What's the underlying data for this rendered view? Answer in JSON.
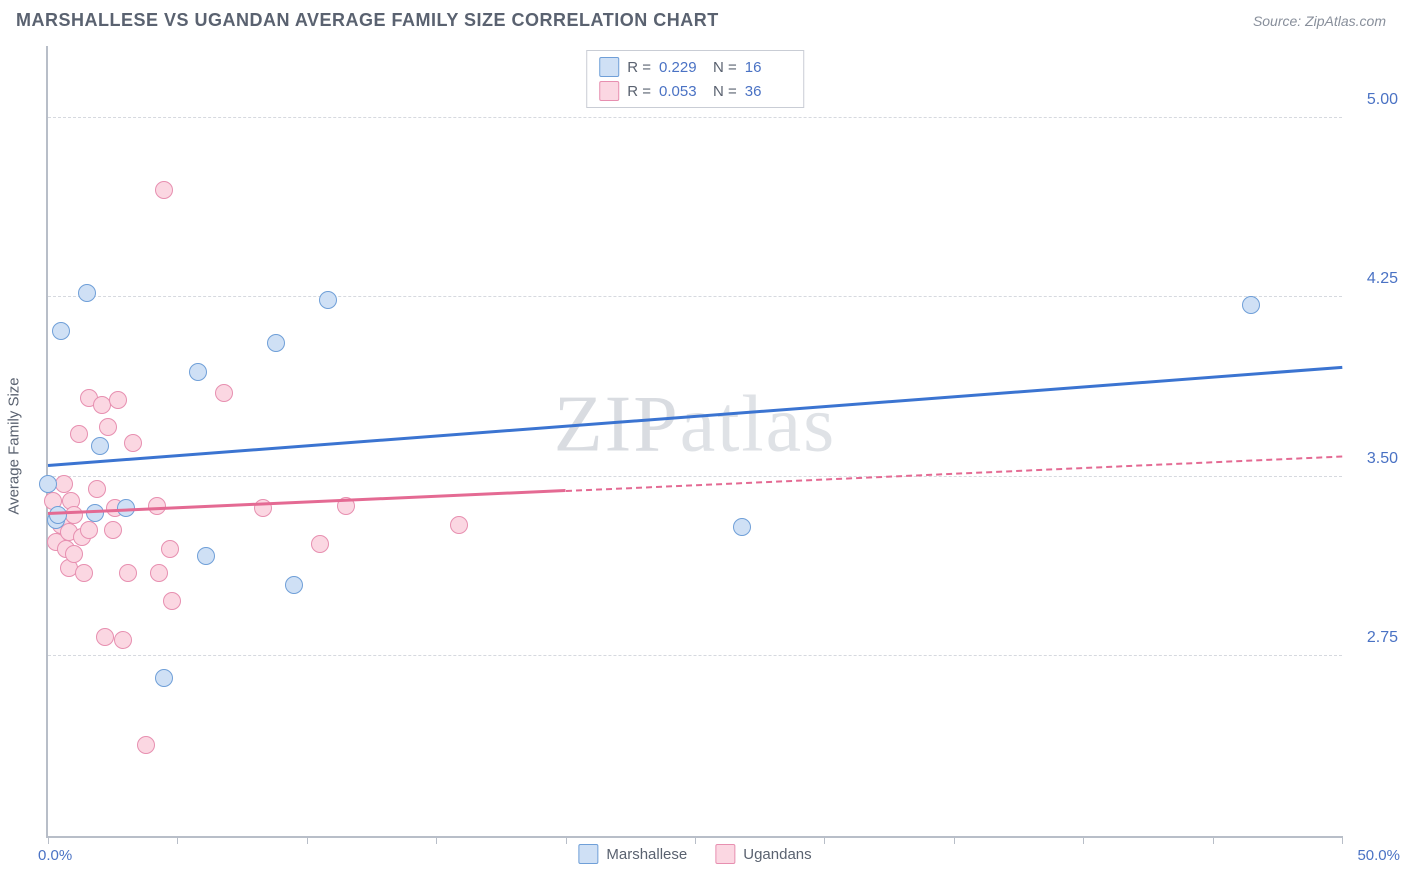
{
  "header": {
    "title": "MARSHALLESE VS UGANDAN AVERAGE FAMILY SIZE CORRELATION CHART",
    "source_prefix": "Source: ",
    "source": "ZipAtlas.com"
  },
  "watermark": {
    "a": "ZIP",
    "b": "atlas"
  },
  "chart": {
    "type": "scatter",
    "ylabel": "Average Family Size",
    "xlim": [
      0,
      50
    ],
    "ylim": [
      2.0,
      5.3
    ],
    "xlim_labels": [
      "0.0%",
      "50.0%"
    ],
    "ytick_vals": [
      2.75,
      3.5,
      4.25,
      5.0
    ],
    "ytick_labels": [
      "2.75",
      "3.50",
      "4.25",
      "5.00"
    ],
    "xtick_vals": [
      0,
      5,
      10,
      15,
      20,
      25,
      30,
      35,
      40,
      45,
      50
    ],
    "background_color": "#ffffff",
    "grid_color": "#d6d9df",
    "axis_color": "#b8bec8",
    "point_radius": 9,
    "series": [
      {
        "name": "Marshallese",
        "fill": "#cfe0f5",
        "stroke": "#6f9fd8",
        "R": "0.229",
        "N": "16",
        "trend": {
          "y_at_x0": 3.54,
          "y_at_x50": 3.95,
          "solid_x_end": 50,
          "color": "#3b74d1"
        },
        "points": [
          [
            0.0,
            3.47
          ],
          [
            0.3,
            3.32
          ],
          [
            0.4,
            3.34
          ],
          [
            0.5,
            4.11
          ],
          [
            1.5,
            4.27
          ],
          [
            1.8,
            3.35
          ],
          [
            2.0,
            3.63
          ],
          [
            3.0,
            3.37
          ],
          [
            4.5,
            2.66
          ],
          [
            5.8,
            3.94
          ],
          [
            6.1,
            3.17
          ],
          [
            8.8,
            4.06
          ],
          [
            9.5,
            3.05
          ],
          [
            10.8,
            4.24
          ],
          [
            26.8,
            3.29
          ],
          [
            46.5,
            4.22
          ]
        ]
      },
      {
        "name": "Ugandans",
        "fill": "#fbd7e2",
        "stroke": "#e78fb0",
        "R": "0.053",
        "N": "36",
        "trend": {
          "y_at_x0": 3.34,
          "y_at_x50": 3.58,
          "solid_x_end": 20,
          "color": "#e46a93"
        },
        "points": [
          [
            0.2,
            3.4
          ],
          [
            0.3,
            3.23
          ],
          [
            0.5,
            3.3
          ],
          [
            0.6,
            3.47
          ],
          [
            0.7,
            3.2
          ],
          [
            0.8,
            3.12
          ],
          [
            0.8,
            3.27
          ],
          [
            0.9,
            3.4
          ],
          [
            1.0,
            3.18
          ],
          [
            1.0,
            3.34
          ],
          [
            1.2,
            3.68
          ],
          [
            1.3,
            3.25
          ],
          [
            1.4,
            3.1
          ],
          [
            1.6,
            3.83
          ],
          [
            1.6,
            3.28
          ],
          [
            1.9,
            3.45
          ],
          [
            2.1,
            3.8
          ],
          [
            2.2,
            2.83
          ],
          [
            2.3,
            3.71
          ],
          [
            2.5,
            3.28
          ],
          [
            2.6,
            3.37
          ],
          [
            2.7,
            3.82
          ],
          [
            2.9,
            2.82
          ],
          [
            3.1,
            3.1
          ],
          [
            3.3,
            3.64
          ],
          [
            3.8,
            2.38
          ],
          [
            4.2,
            3.38
          ],
          [
            4.3,
            3.1
          ],
          [
            4.5,
            4.7
          ],
          [
            4.8,
            2.98
          ],
          [
            6.8,
            3.85
          ],
          [
            8.3,
            3.37
          ],
          [
            10.5,
            3.22
          ],
          [
            11.5,
            3.38
          ],
          [
            15.9,
            3.3
          ],
          [
            4.7,
            3.2
          ]
        ]
      }
    ],
    "legend_bottom": [
      "Marshallese",
      "Ugandans"
    ]
  }
}
